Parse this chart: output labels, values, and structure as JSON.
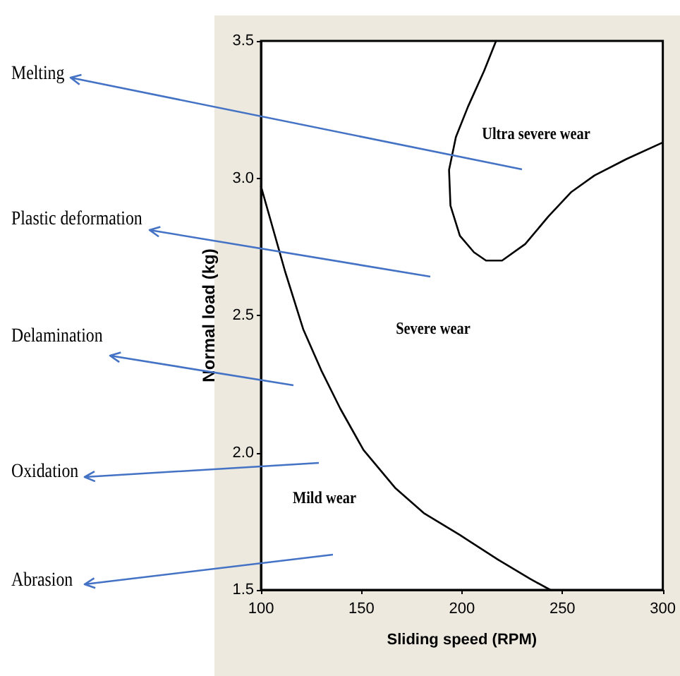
{
  "chart_data": {
    "type": "line",
    "xlabel": "Sliding speed (RPM)",
    "ylabel": "Normal load (kg)",
    "xlim": [
      100,
      300
    ],
    "xticks": [
      100,
      150,
      200,
      250,
      300
    ],
    "ylim": [
      1.5,
      3.5
    ],
    "yticks": [
      1.5,
      {
        "value": 2,
        "label": "2.0"
      },
      2.5,
      {
        "value": 3,
        "label": "3.0"
      },
      3.5
    ],
    "grid": false,
    "marker": "none",
    "series": [
      {
        "color": "#000000",
        "x": [
          100,
          112,
          121,
          130,
          139.5,
          151,
          167,
          181,
          199,
          218,
          234,
          244
        ],
        "values": [
          2.97,
          2.66,
          2.45,
          2.3,
          2.16,
          2.01,
          1.87,
          1.78,
          1.7,
          1.61,
          1.54,
          1.5
        ]
      },
      {
        "color": "#000000",
        "x": [
          217,
          211,
          203,
          197,
          193.6,
          194.3,
          199,
          206,
          212,
          220,
          231.5,
          243,
          254.5,
          266,
          282,
          300
        ],
        "values": [
          3.5,
          3.39,
          3.26,
          3.15,
          3.03,
          2.9,
          2.79,
          2.73,
          2.7,
          2.7,
          2.76,
          2.86,
          2.95,
          3.01,
          3.07,
          3.13
        ]
      }
    ],
    "annotations": [
      "Ultra severe wear",
      "Severe wear",
      "Mild wear",
      "Melting",
      "Plastic deformation",
      "Delamination",
      "Oxidation",
      "Abrasion"
    ]
  }
}
